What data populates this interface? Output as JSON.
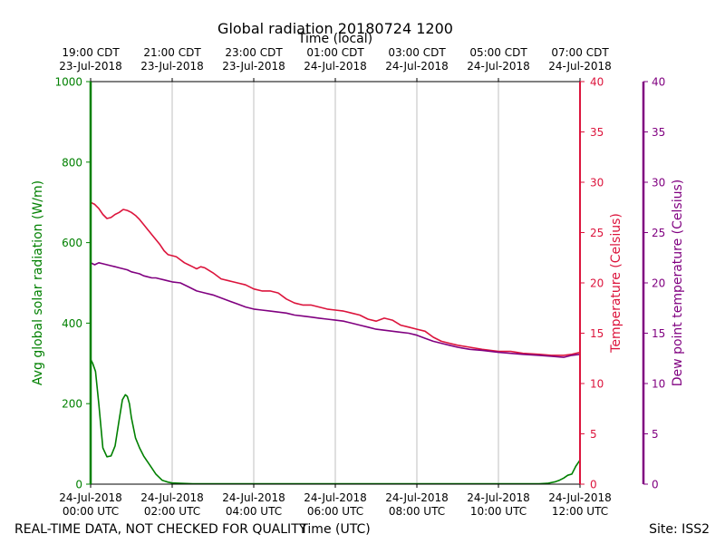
{
  "chart_data": {
    "type": "line",
    "title": "Global radiation 20180724 1200",
    "top_axis_label": "Time (local)",
    "xlabel": "Time (UTC)",
    "footer_left": "REAL-TIME DATA, NOT CHECKED FOR QUALITY",
    "footer_right": "Site: ISS2",
    "x_unit": "hours since 24-Jul-2018 00:00 UTC",
    "xlim": [
      0,
      12
    ],
    "grid": "vertical",
    "x_ticks": [
      {
        "x": 0,
        "date": "24-Jul-2018",
        "time": "00:00 UTC"
      },
      {
        "x": 2,
        "date": "24-Jul-2018",
        "time": "02:00 UTC"
      },
      {
        "x": 4,
        "date": "24-Jul-2018",
        "time": "04:00 UTC"
      },
      {
        "x": 6,
        "date": "24-Jul-2018",
        "time": "06:00 UTC"
      },
      {
        "x": 8,
        "date": "24-Jul-2018",
        "time": "08:00 UTC"
      },
      {
        "x": 10,
        "date": "24-Jul-2018",
        "time": "10:00 UTC"
      },
      {
        "x": 12,
        "date": "24-Jul-2018",
        "time": "12:00 UTC"
      }
    ],
    "top_ticks": [
      {
        "x": 0,
        "time": "19:00 CDT",
        "date": "23-Jul-2018"
      },
      {
        "x": 2,
        "time": "21:00 CDT",
        "date": "23-Jul-2018"
      },
      {
        "x": 4,
        "time": "23:00 CDT",
        "date": "23-Jul-2018"
      },
      {
        "x": 6,
        "time": "01:00 CDT",
        "date": "24-Jul-2018"
      },
      {
        "x": 8,
        "time": "03:00 CDT",
        "date": "24-Jul-2018"
      },
      {
        "x": 10,
        "time": "05:00 CDT",
        "date": "24-Jul-2018"
      },
      {
        "x": 12,
        "time": "07:00 CDT",
        "date": "24-Jul-2018"
      }
    ],
    "axes": {
      "left": {
        "label": "Avg global solar radiation (W/m)",
        "ylim": [
          0,
          1000
        ],
        "ticks": [
          0,
          200,
          400,
          600,
          800,
          1000
        ],
        "color": "#008000"
      },
      "right": {
        "label": "Temperature (Celsius)",
        "ylim": [
          0,
          40
        ],
        "ticks": [
          0,
          5,
          10,
          15,
          20,
          25,
          30,
          35,
          40
        ],
        "color": "#dc143c"
      },
      "right2": {
        "label": "Dew point temperature (Celsius)",
        "ylim": [
          0,
          40
        ],
        "ticks": [
          0,
          5,
          10,
          15,
          20,
          25,
          30,
          35,
          40
        ],
        "color": "#800080"
      }
    },
    "series": [
      {
        "name": "Avg global solar radiation",
        "axis": "left",
        "color": "#008000",
        "x": [
          0,
          0.05,
          0.12,
          0.2,
          0.3,
          0.4,
          0.5,
          0.6,
          0.7,
          0.78,
          0.85,
          0.9,
          0.95,
          1.0,
          1.1,
          1.2,
          1.3,
          1.4,
          1.5,
          1.6,
          1.7,
          1.75,
          1.8,
          1.9,
          2.0,
          2.2,
          2.5,
          3,
          4,
          5,
          6,
          7,
          8,
          9,
          10,
          11,
          11.2,
          11.4,
          11.5,
          11.6,
          11.7,
          11.8,
          11.9,
          12.0
        ],
        "values": [
          310,
          300,
          280,
          200,
          90,
          68,
          70,
          95,
          160,
          210,
          222,
          218,
          200,
          165,
          115,
          90,
          70,
          55,
          40,
          25,
          15,
          10,
          8,
          5,
          3,
          2,
          1,
          1,
          1,
          1,
          1,
          1,
          1,
          1,
          1,
          1,
          2,
          6,
          10,
          15,
          22,
          25,
          45,
          60
        ]
      },
      {
        "name": "Temperature",
        "axis": "right",
        "color": "#dc143c",
        "x": [
          0,
          0.1,
          0.2,
          0.3,
          0.4,
          0.5,
          0.6,
          0.7,
          0.8,
          0.9,
          1.0,
          1.1,
          1.2,
          1.3,
          1.4,
          1.5,
          1.6,
          1.7,
          1.8,
          1.9,
          2.0,
          2.1,
          2.2,
          2.3,
          2.4,
          2.5,
          2.6,
          2.7,
          2.8,
          3.0,
          3.2,
          3.4,
          3.6,
          3.8,
          4.0,
          4.2,
          4.4,
          4.6,
          4.8,
          5.0,
          5.2,
          5.4,
          5.6,
          5.8,
          6.0,
          6.2,
          6.4,
          6.6,
          6.8,
          7.0,
          7.2,
          7.4,
          7.6,
          7.8,
          8.0,
          8.2,
          8.4,
          8.6,
          8.8,
          9.0,
          9.3,
          9.6,
          10.0,
          10.3,
          10.6,
          11.0,
          11.3,
          11.6,
          11.8,
          12.0
        ],
        "values": [
          28.0,
          27.8,
          27.4,
          26.8,
          26.4,
          26.5,
          26.8,
          27.0,
          27.3,
          27.2,
          27.0,
          26.7,
          26.3,
          25.8,
          25.3,
          24.8,
          24.3,
          23.8,
          23.2,
          22.8,
          22.7,
          22.6,
          22.3,
          22.0,
          21.8,
          21.6,
          21.4,
          21.6,
          21.5,
          21.0,
          20.4,
          20.2,
          20.0,
          19.8,
          19.4,
          19.2,
          19.2,
          19.0,
          18.4,
          18.0,
          17.8,
          17.8,
          17.6,
          17.4,
          17.3,
          17.2,
          17.0,
          16.8,
          16.4,
          16.2,
          16.5,
          16.3,
          15.8,
          15.6,
          15.4,
          15.2,
          14.6,
          14.2,
          14.0,
          13.8,
          13.6,
          13.4,
          13.2,
          13.2,
          13.0,
          12.9,
          12.8,
          12.8,
          12.9,
          13.1
        ]
      },
      {
        "name": "Dew point temperature",
        "axis": "right2",
        "color": "#800080",
        "x": [
          0,
          0.1,
          0.2,
          0.3,
          0.4,
          0.5,
          0.6,
          0.7,
          0.8,
          0.9,
          1.0,
          1.1,
          1.2,
          1.3,
          1.4,
          1.5,
          1.6,
          1.7,
          1.8,
          1.9,
          2.0,
          2.2,
          2.4,
          2.6,
          2.8,
          3.0,
          3.2,
          3.4,
          3.6,
          3.8,
          4.0,
          4.2,
          4.4,
          4.6,
          4.8,
          5.0,
          5.2,
          5.4,
          5.6,
          5.8,
          6.0,
          6.2,
          6.4,
          6.6,
          6.8,
          7.0,
          7.2,
          7.4,
          7.6,
          7.8,
          8.0,
          8.2,
          8.4,
          8.6,
          8.8,
          9.0,
          9.3,
          9.6,
          10.0,
          10.3,
          10.6,
          11.0,
          11.3,
          11.6,
          11.8,
          12.0
        ],
        "values": [
          22.0,
          21.8,
          22.0,
          21.9,
          21.8,
          21.7,
          21.6,
          21.5,
          21.4,
          21.3,
          21.1,
          21.0,
          20.9,
          20.7,
          20.6,
          20.5,
          20.5,
          20.4,
          20.3,
          20.2,
          20.1,
          20.0,
          19.6,
          19.2,
          19.0,
          18.8,
          18.5,
          18.2,
          17.9,
          17.6,
          17.4,
          17.3,
          17.2,
          17.1,
          17.0,
          16.8,
          16.7,
          16.6,
          16.5,
          16.4,
          16.3,
          16.2,
          16.0,
          15.8,
          15.6,
          15.4,
          15.3,
          15.2,
          15.1,
          15.0,
          14.8,
          14.5,
          14.2,
          14.0,
          13.8,
          13.6,
          13.4,
          13.3,
          13.1,
          13.0,
          12.9,
          12.8,
          12.7,
          12.6,
          12.8,
          12.9
        ]
      }
    ]
  }
}
